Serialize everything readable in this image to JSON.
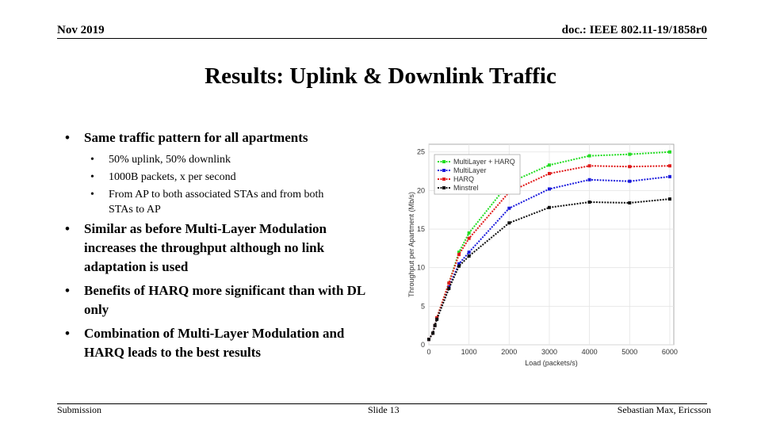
{
  "header": {
    "date": "Nov 2019",
    "doc": "doc.: IEEE 802.11-19/1858r0"
  },
  "title": "Results: Uplink & Downlink Traffic",
  "bullets": [
    {
      "text": "Same traffic pattern for all apartments",
      "sub": [
        "50% uplink, 50% downlink",
        "1000B packets, x per second",
        "From AP to both associated STAs and from both STAs to AP"
      ]
    },
    {
      "text": "Similar as before Multi-Layer Modulation increases the throughput although no link adaptation is used",
      "sub": []
    },
    {
      "text": "Benefits of HARQ more significant than with DL only",
      "sub": []
    },
    {
      "text": "Combination of Multi-Layer Modulation and HARQ leads to the best results",
      "sub": []
    }
  ],
  "chart_data": {
    "type": "line",
    "x_label": "Load (packets/s)",
    "y_label": "Throughput per Apartment (Mb/s)",
    "x": [
      0,
      100,
      150,
      200,
      500,
      750,
      1000,
      2000,
      3000,
      4000,
      5000,
      6000
    ],
    "series": [
      {
        "name": "MultiLayer + HARQ",
        "color": "#22dd22",
        "values": [
          0.7,
          1.5,
          2.5,
          3.5,
          8,
          12,
          14.5,
          21,
          23.3,
          24.5,
          24.7,
          25
        ]
      },
      {
        "name": "MultiLayer",
        "color": "#1a1adc",
        "values": [
          0.7,
          1.5,
          2.5,
          3.4,
          7.5,
          10.5,
          12,
          17.7,
          20.2,
          21.4,
          21.2,
          21.8
        ]
      },
      {
        "name": "HARQ",
        "color": "#e01a1a",
        "values": [
          0.7,
          1.5,
          2.5,
          3.5,
          8,
          11.7,
          13.8,
          19.8,
          22.2,
          23.2,
          23.1,
          23.2
        ]
      },
      {
        "name": "Minstrel",
        "color": "#111111",
        "values": [
          0.7,
          1.5,
          2.5,
          3.3,
          7.3,
          10.2,
          11.5,
          15.8,
          17.8,
          18.5,
          18.4,
          18.9
        ]
      }
    ],
    "xlim": [
      0,
      6100
    ],
    "ylim": [
      0,
      26
    ],
    "xticks": [
      0,
      1000,
      2000,
      3000,
      4000,
      5000,
      6000
    ],
    "yticks": [
      0,
      5,
      10,
      15,
      20,
      25
    ]
  },
  "footer": {
    "left": "Submission",
    "center": "Slide 13",
    "right": "Sebastian Max, Ericsson"
  }
}
